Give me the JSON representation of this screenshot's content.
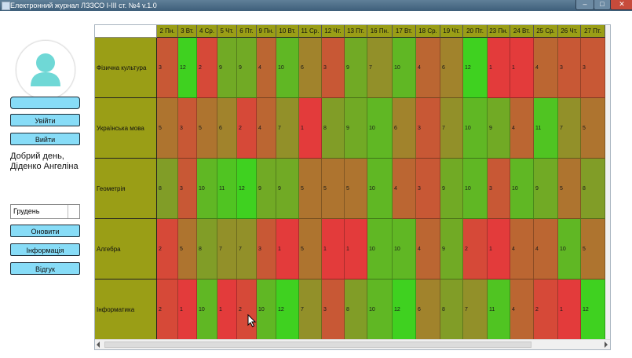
{
  "window": {
    "title": "Електронний журнал ЛЗЗСО І-ІІІ ст. №4 v.1.0",
    "minimize": "–",
    "maximize": "□",
    "close": "✕"
  },
  "sidebar": {
    "login_field": "",
    "login_button": "Увійти",
    "logout_button": "Вийти",
    "greeting": "Добрий день, Діденко Ангеліна",
    "month": "Грудень",
    "refresh_button": "Оновити",
    "info_button": "Інформація",
    "feedback_button": "Відгук"
  },
  "grid": {
    "days": [
      "2 Пн.",
      "3 Вт.",
      "4 Ср.",
      "5 Чт.",
      "6 Пт.",
      "9 Пн.",
      "10 Вт.",
      "11 Ср.",
      "12 Чт.",
      "13 Пт.",
      "16 Пн.",
      "17 Вт.",
      "18 Ср.",
      "19 Чт.",
      "20 Пт.",
      "23 Пн.",
      "24 Вт.",
      "25 Ср.",
      "26 Чт.",
      "27 Пт."
    ],
    "subjects": [
      {
        "name": "Фізична культура",
        "grades": [
          "3",
          "12",
          "2",
          "9",
          "9",
          "4",
          "10",
          "6",
          "3",
          "9",
          "7",
          "10",
          "4",
          "6",
          "12",
          "1",
          "1",
          "4",
          "3",
          "3"
        ]
      },
      {
        "name": "Українська мова",
        "grades": [
          "5",
          "3",
          "5",
          "6",
          "2",
          "4",
          "7",
          "1",
          "8",
          "9",
          "10",
          "6",
          "3",
          "7",
          "10",
          "9",
          "4",
          "11",
          "7",
          "5"
        ]
      },
      {
        "name": "Геометрія",
        "grades": [
          "8",
          "3",
          "10",
          "11",
          "12",
          "9",
          "9",
          "5",
          "5",
          "5",
          "10",
          "4",
          "3",
          "9",
          "10",
          "3",
          "10",
          "9",
          "5",
          "8"
        ]
      },
      {
        "name": "Алгебра",
        "grades": [
          "2",
          "5",
          "8",
          "7",
          "7",
          "3",
          "1",
          "5",
          "1",
          "1",
          "10",
          "10",
          "4",
          "9",
          "2",
          "1",
          "4",
          "4",
          "10",
          "5"
        ]
      },
      {
        "name": "Інформатика",
        "grades": [
          "2",
          "1",
          "10",
          "1",
          "2",
          "10",
          "12",
          "7",
          "3",
          "8",
          "10",
          "12",
          "6",
          "8",
          "7",
          "11",
          "4",
          "2",
          "1",
          "12"
        ]
      }
    ]
  },
  "colors": {
    "grade_low": "#e33b3b",
    "grade_mid": "#9a8a2a",
    "grade_high": "#3fd120",
    "subject_bg": "#9a9e16",
    "button_bg": "#87dcf7",
    "avatar": "#6fd8d6"
  },
  "icons": {
    "avatar": "user-silhouette-icon",
    "cursor": "mouse-pointer-icon"
  }
}
